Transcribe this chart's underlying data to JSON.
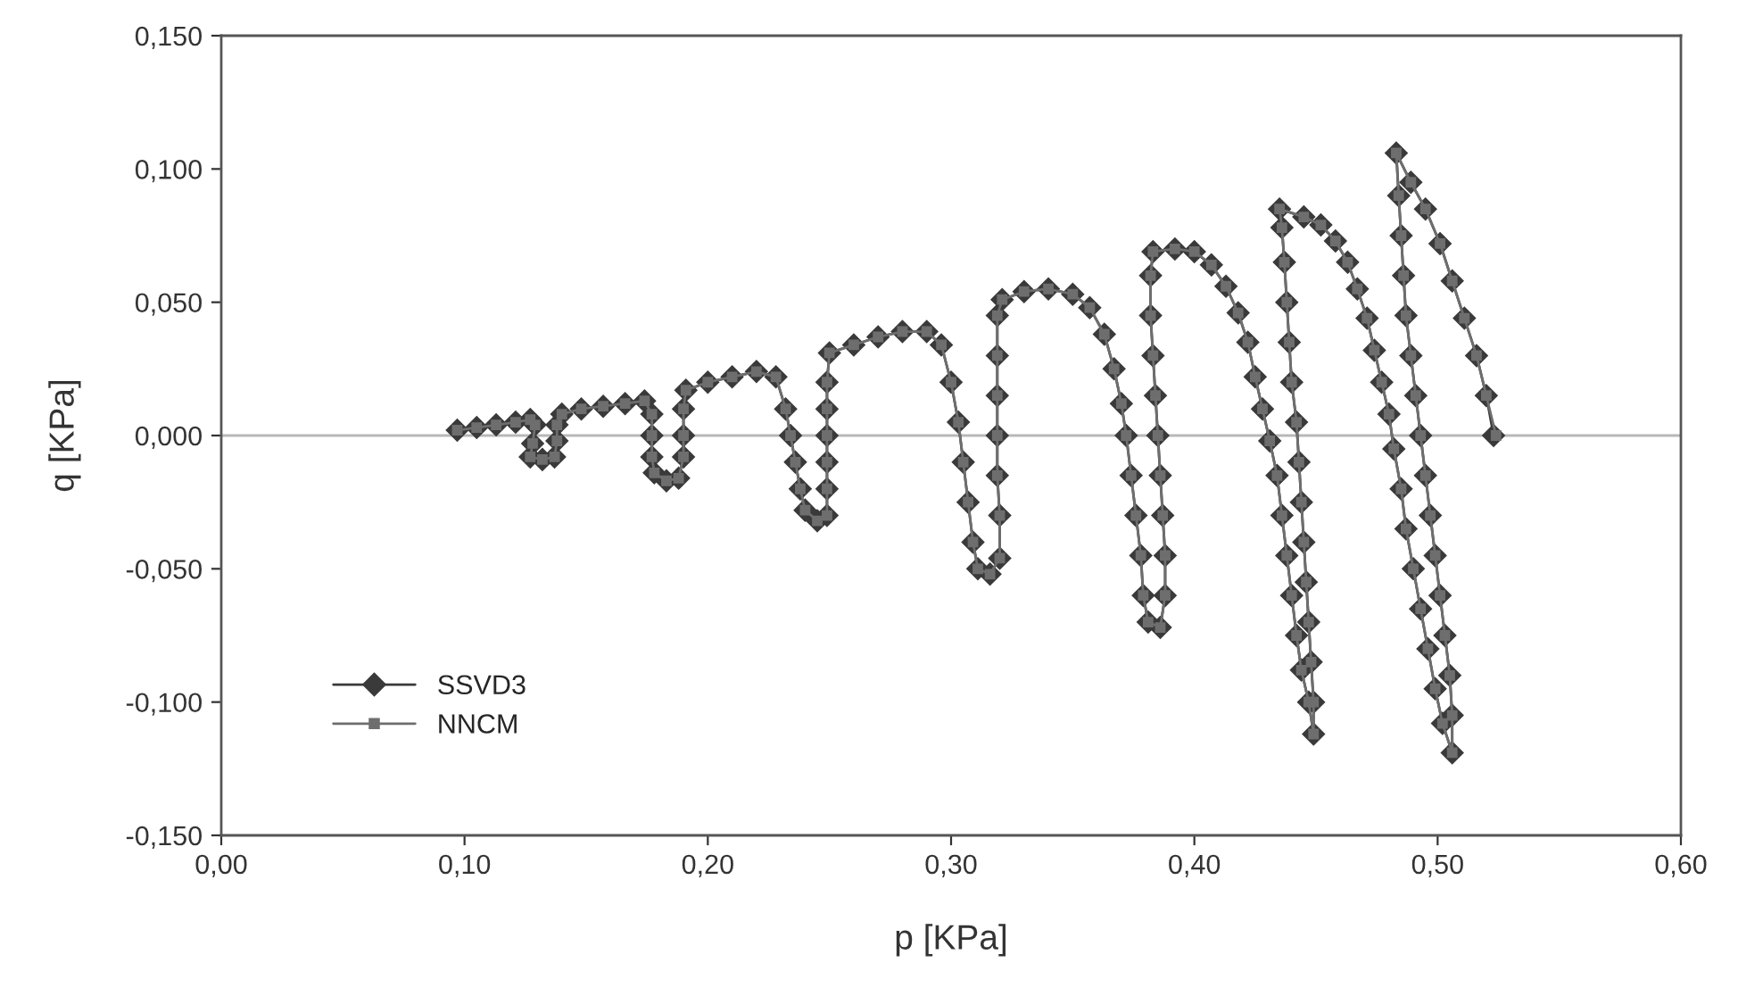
{
  "chart_data": {
    "type": "line",
    "xlabel": "p [KPa]",
    "ylabel": "q [KPa]",
    "xlim": [
      0,
      0.6
    ],
    "ylim": [
      -0.15,
      0.15
    ],
    "xticks": [
      {
        "value": 0,
        "label": "0,00"
      },
      {
        "value": 0.1,
        "label": "0,10"
      },
      {
        "value": 0.2,
        "label": "0,20"
      },
      {
        "value": 0.3,
        "label": "0,30"
      },
      {
        "value": 0.4,
        "label": "0,40"
      },
      {
        "value": 0.5,
        "label": "0,50"
      },
      {
        "value": 0.6,
        "label": "0,60"
      }
    ],
    "yticks": [
      {
        "value": -0.15,
        "label": "-0,150"
      },
      {
        "value": -0.1,
        "label": "-0,100"
      },
      {
        "value": -0.05,
        "label": "-0,050"
      },
      {
        "value": 0,
        "label": "0,000"
      },
      {
        "value": 0.05,
        "label": "0,050"
      },
      {
        "value": 0.1,
        "label": "0,100"
      },
      {
        "value": 0.15,
        "label": "0,150"
      }
    ],
    "grid": false,
    "legend": "bottom left",
    "ref_lines": [
      {
        "axis": "y",
        "value": 0,
        "color": "#b8b8b8"
      }
    ],
    "series": [
      {
        "name": "SSVD3",
        "color": "#3a3a3a",
        "marker": "diamond",
        "x": [
          0.097,
          0.105,
          0.113,
          0.121,
          0.127,
          0.129,
          0.128,
          0.127,
          0.132,
          0.137,
          0.138,
          0.138,
          0.14,
          0.148,
          0.157,
          0.166,
          0.174,
          0.177,
          0.177,
          0.177,
          0.178,
          0.183,
          0.188,
          0.19,
          0.19,
          0.19,
          0.191,
          0.2,
          0.21,
          0.22,
          0.228,
          0.232,
          0.234,
          0.236,
          0.238,
          0.24,
          0.245,
          0.249,
          0.249,
          0.249,
          0.249,
          0.249,
          0.249,
          0.25,
          0.26,
          0.27,
          0.28,
          0.29,
          0.296,
          0.3,
          0.303,
          0.305,
          0.307,
          0.309,
          0.311,
          0.316,
          0.32,
          0.32,
          0.319,
          0.319,
          0.319,
          0.319,
          0.319,
          0.321,
          0.33,
          0.34,
          0.35,
          0.357,
          0.363,
          0.367,
          0.37,
          0.372,
          0.374,
          0.376,
          0.378,
          0.379,
          0.381,
          0.386,
          0.388,
          0.388,
          0.387,
          0.386,
          0.385,
          0.384,
          0.383,
          0.382,
          0.382,
          0.383,
          0.392,
          0.4,
          0.407,
          0.413,
          0.418,
          0.422,
          0.425,
          0.428,
          0.431,
          0.434,
          0.436,
          0.438,
          0.44,
          0.442,
          0.444,
          0.447,
          0.449,
          0.449,
          0.448,
          0.447,
          0.446,
          0.445,
          0.444,
          0.443,
          0.442,
          0.44,
          0.439,
          0.438,
          0.437,
          0.436,
          0.435,
          0.445,
          0.452,
          0.458,
          0.463,
          0.467,
          0.471,
          0.474,
          0.477,
          0.48,
          0.482,
          0.485,
          0.487,
          0.49,
          0.493,
          0.496,
          0.499,
          0.502,
          0.506,
          0.506,
          0.505,
          0.503,
          0.501,
          0.499,
          0.497,
          0.495,
          0.493,
          0.491,
          0.489,
          0.487,
          0.486,
          0.485,
          0.484,
          0.483,
          0.489,
          0.495,
          0.501,
          0.506,
          0.511,
          0.516,
          0.52,
          0.523
        ],
        "values": [
          0.002,
          0.003,
          0.004,
          0.005,
          0.006,
          0.004,
          -0.003,
          -0.008,
          -0.009,
          -0.008,
          -0.002,
          0.004,
          0.008,
          0.01,
          0.011,
          0.012,
          0.013,
          0.008,
          0.0,
          -0.008,
          -0.014,
          -0.017,
          -0.016,
          -0.008,
          0.0,
          0.01,
          0.017,
          0.02,
          0.022,
          0.024,
          0.022,
          0.01,
          0.0,
          -0.01,
          -0.02,
          -0.028,
          -0.032,
          -0.03,
          -0.02,
          -0.01,
          0.0,
          0.01,
          0.02,
          0.031,
          0.034,
          0.037,
          0.039,
          0.039,
          0.034,
          0.02,
          0.005,
          -0.01,
          -0.025,
          -0.04,
          -0.05,
          -0.052,
          -0.046,
          -0.03,
          -0.015,
          0.0,
          0.015,
          0.03,
          0.045,
          0.051,
          0.054,
          0.055,
          0.053,
          0.048,
          0.038,
          0.025,
          0.012,
          0.0,
          -0.015,
          -0.03,
          -0.045,
          -0.06,
          -0.07,
          -0.072,
          -0.06,
          -0.045,
          -0.03,
          -0.015,
          0.0,
          0.015,
          0.03,
          0.045,
          0.06,
          0.069,
          0.07,
          0.069,
          0.064,
          0.056,
          0.046,
          0.035,
          0.022,
          0.01,
          -0.002,
          -0.015,
          -0.03,
          -0.045,
          -0.06,
          -0.075,
          -0.088,
          -0.1,
          -0.112,
          -0.1,
          -0.085,
          -0.07,
          -0.055,
          -0.04,
          -0.025,
          -0.01,
          0.005,
          0.02,
          0.035,
          0.05,
          0.065,
          0.078,
          0.085,
          0.082,
          0.079,
          0.073,
          0.065,
          0.055,
          0.044,
          0.032,
          0.02,
          0.008,
          -0.005,
          -0.02,
          -0.035,
          -0.05,
          -0.065,
          -0.08,
          -0.095,
          -0.108,
          -0.119,
          -0.105,
          -0.09,
          -0.075,
          -0.06,
          -0.045,
          -0.03,
          -0.015,
          0.0,
          0.015,
          0.03,
          0.045,
          0.06,
          0.075,
          0.09,
          0.106,
          0.095,
          0.085,
          0.072,
          0.058,
          0.044,
          0.03,
          0.015,
          0.0
        ]
      },
      {
        "name": "NNCM",
        "color": "#6e6e6e",
        "marker": "square",
        "x": [
          0.097,
          0.105,
          0.113,
          0.121,
          0.127,
          0.129,
          0.128,
          0.127,
          0.132,
          0.137,
          0.138,
          0.138,
          0.14,
          0.148,
          0.157,
          0.166,
          0.174,
          0.177,
          0.177,
          0.177,
          0.178,
          0.183,
          0.188,
          0.19,
          0.19,
          0.19,
          0.191,
          0.2,
          0.21,
          0.22,
          0.228,
          0.232,
          0.234,
          0.236,
          0.238,
          0.24,
          0.245,
          0.249,
          0.249,
          0.249,
          0.249,
          0.249,
          0.249,
          0.25,
          0.26,
          0.27,
          0.28,
          0.29,
          0.296,
          0.3,
          0.303,
          0.305,
          0.307,
          0.309,
          0.311,
          0.316,
          0.32,
          0.32,
          0.319,
          0.319,
          0.319,
          0.319,
          0.319,
          0.321,
          0.33,
          0.34,
          0.35,
          0.357,
          0.363,
          0.367,
          0.37,
          0.372,
          0.374,
          0.376,
          0.378,
          0.379,
          0.381,
          0.386,
          0.388,
          0.388,
          0.387,
          0.386,
          0.385,
          0.384,
          0.383,
          0.382,
          0.382,
          0.383,
          0.392,
          0.4,
          0.407,
          0.413,
          0.418,
          0.422,
          0.425,
          0.428,
          0.431,
          0.434,
          0.436,
          0.438,
          0.44,
          0.442,
          0.444,
          0.447,
          0.449,
          0.449,
          0.448,
          0.447,
          0.446,
          0.445,
          0.444,
          0.443,
          0.442,
          0.44,
          0.439,
          0.438,
          0.437,
          0.436,
          0.435,
          0.445,
          0.452,
          0.458,
          0.463,
          0.467,
          0.471,
          0.474,
          0.477,
          0.48,
          0.482,
          0.485,
          0.487,
          0.49,
          0.493,
          0.496,
          0.499,
          0.502,
          0.506,
          0.506,
          0.505,
          0.503,
          0.501,
          0.499,
          0.497,
          0.495,
          0.493,
          0.491,
          0.489,
          0.487,
          0.486,
          0.485,
          0.484,
          0.483,
          0.489,
          0.495,
          0.501,
          0.506,
          0.511,
          0.516,
          0.52,
          0.524
        ],
        "values": [
          0.002,
          0.003,
          0.004,
          0.005,
          0.006,
          0.004,
          -0.003,
          -0.008,
          -0.009,
          -0.008,
          -0.002,
          0.004,
          0.008,
          0.01,
          0.011,
          0.012,
          0.013,
          0.008,
          0.0,
          -0.008,
          -0.014,
          -0.017,
          -0.016,
          -0.008,
          0.0,
          0.01,
          0.017,
          0.02,
          0.022,
          0.024,
          0.022,
          0.01,
          0.0,
          -0.01,
          -0.02,
          -0.028,
          -0.032,
          -0.03,
          -0.02,
          -0.01,
          0.0,
          0.01,
          0.02,
          0.031,
          0.034,
          0.037,
          0.039,
          0.039,
          0.034,
          0.02,
          0.005,
          -0.01,
          -0.025,
          -0.04,
          -0.05,
          -0.052,
          -0.046,
          -0.03,
          -0.015,
          0.0,
          0.015,
          0.03,
          0.045,
          0.051,
          0.054,
          0.055,
          0.053,
          0.048,
          0.038,
          0.025,
          0.012,
          0.0,
          -0.015,
          -0.03,
          -0.045,
          -0.06,
          -0.07,
          -0.072,
          -0.06,
          -0.045,
          -0.03,
          -0.015,
          0.0,
          0.015,
          0.03,
          0.045,
          0.06,
          0.069,
          0.07,
          0.069,
          0.064,
          0.056,
          0.046,
          0.035,
          0.022,
          0.01,
          -0.002,
          -0.015,
          -0.03,
          -0.045,
          -0.06,
          -0.075,
          -0.088,
          -0.1,
          -0.112,
          -0.1,
          -0.085,
          -0.07,
          -0.055,
          -0.04,
          -0.025,
          -0.01,
          0.005,
          0.02,
          0.035,
          0.05,
          0.065,
          0.078,
          0.085,
          0.082,
          0.079,
          0.073,
          0.065,
          0.055,
          0.044,
          0.032,
          0.02,
          0.008,
          -0.005,
          -0.02,
          -0.035,
          -0.05,
          -0.065,
          -0.08,
          -0.095,
          -0.108,
          -0.119,
          -0.105,
          -0.09,
          -0.075,
          -0.06,
          -0.045,
          -0.03,
          -0.015,
          0.0,
          0.015,
          0.03,
          0.045,
          0.06,
          0.075,
          0.09,
          0.106,
          0.095,
          0.085,
          0.072,
          0.058,
          0.044,
          0.03,
          0.015,
          0.0
        ]
      }
    ]
  }
}
